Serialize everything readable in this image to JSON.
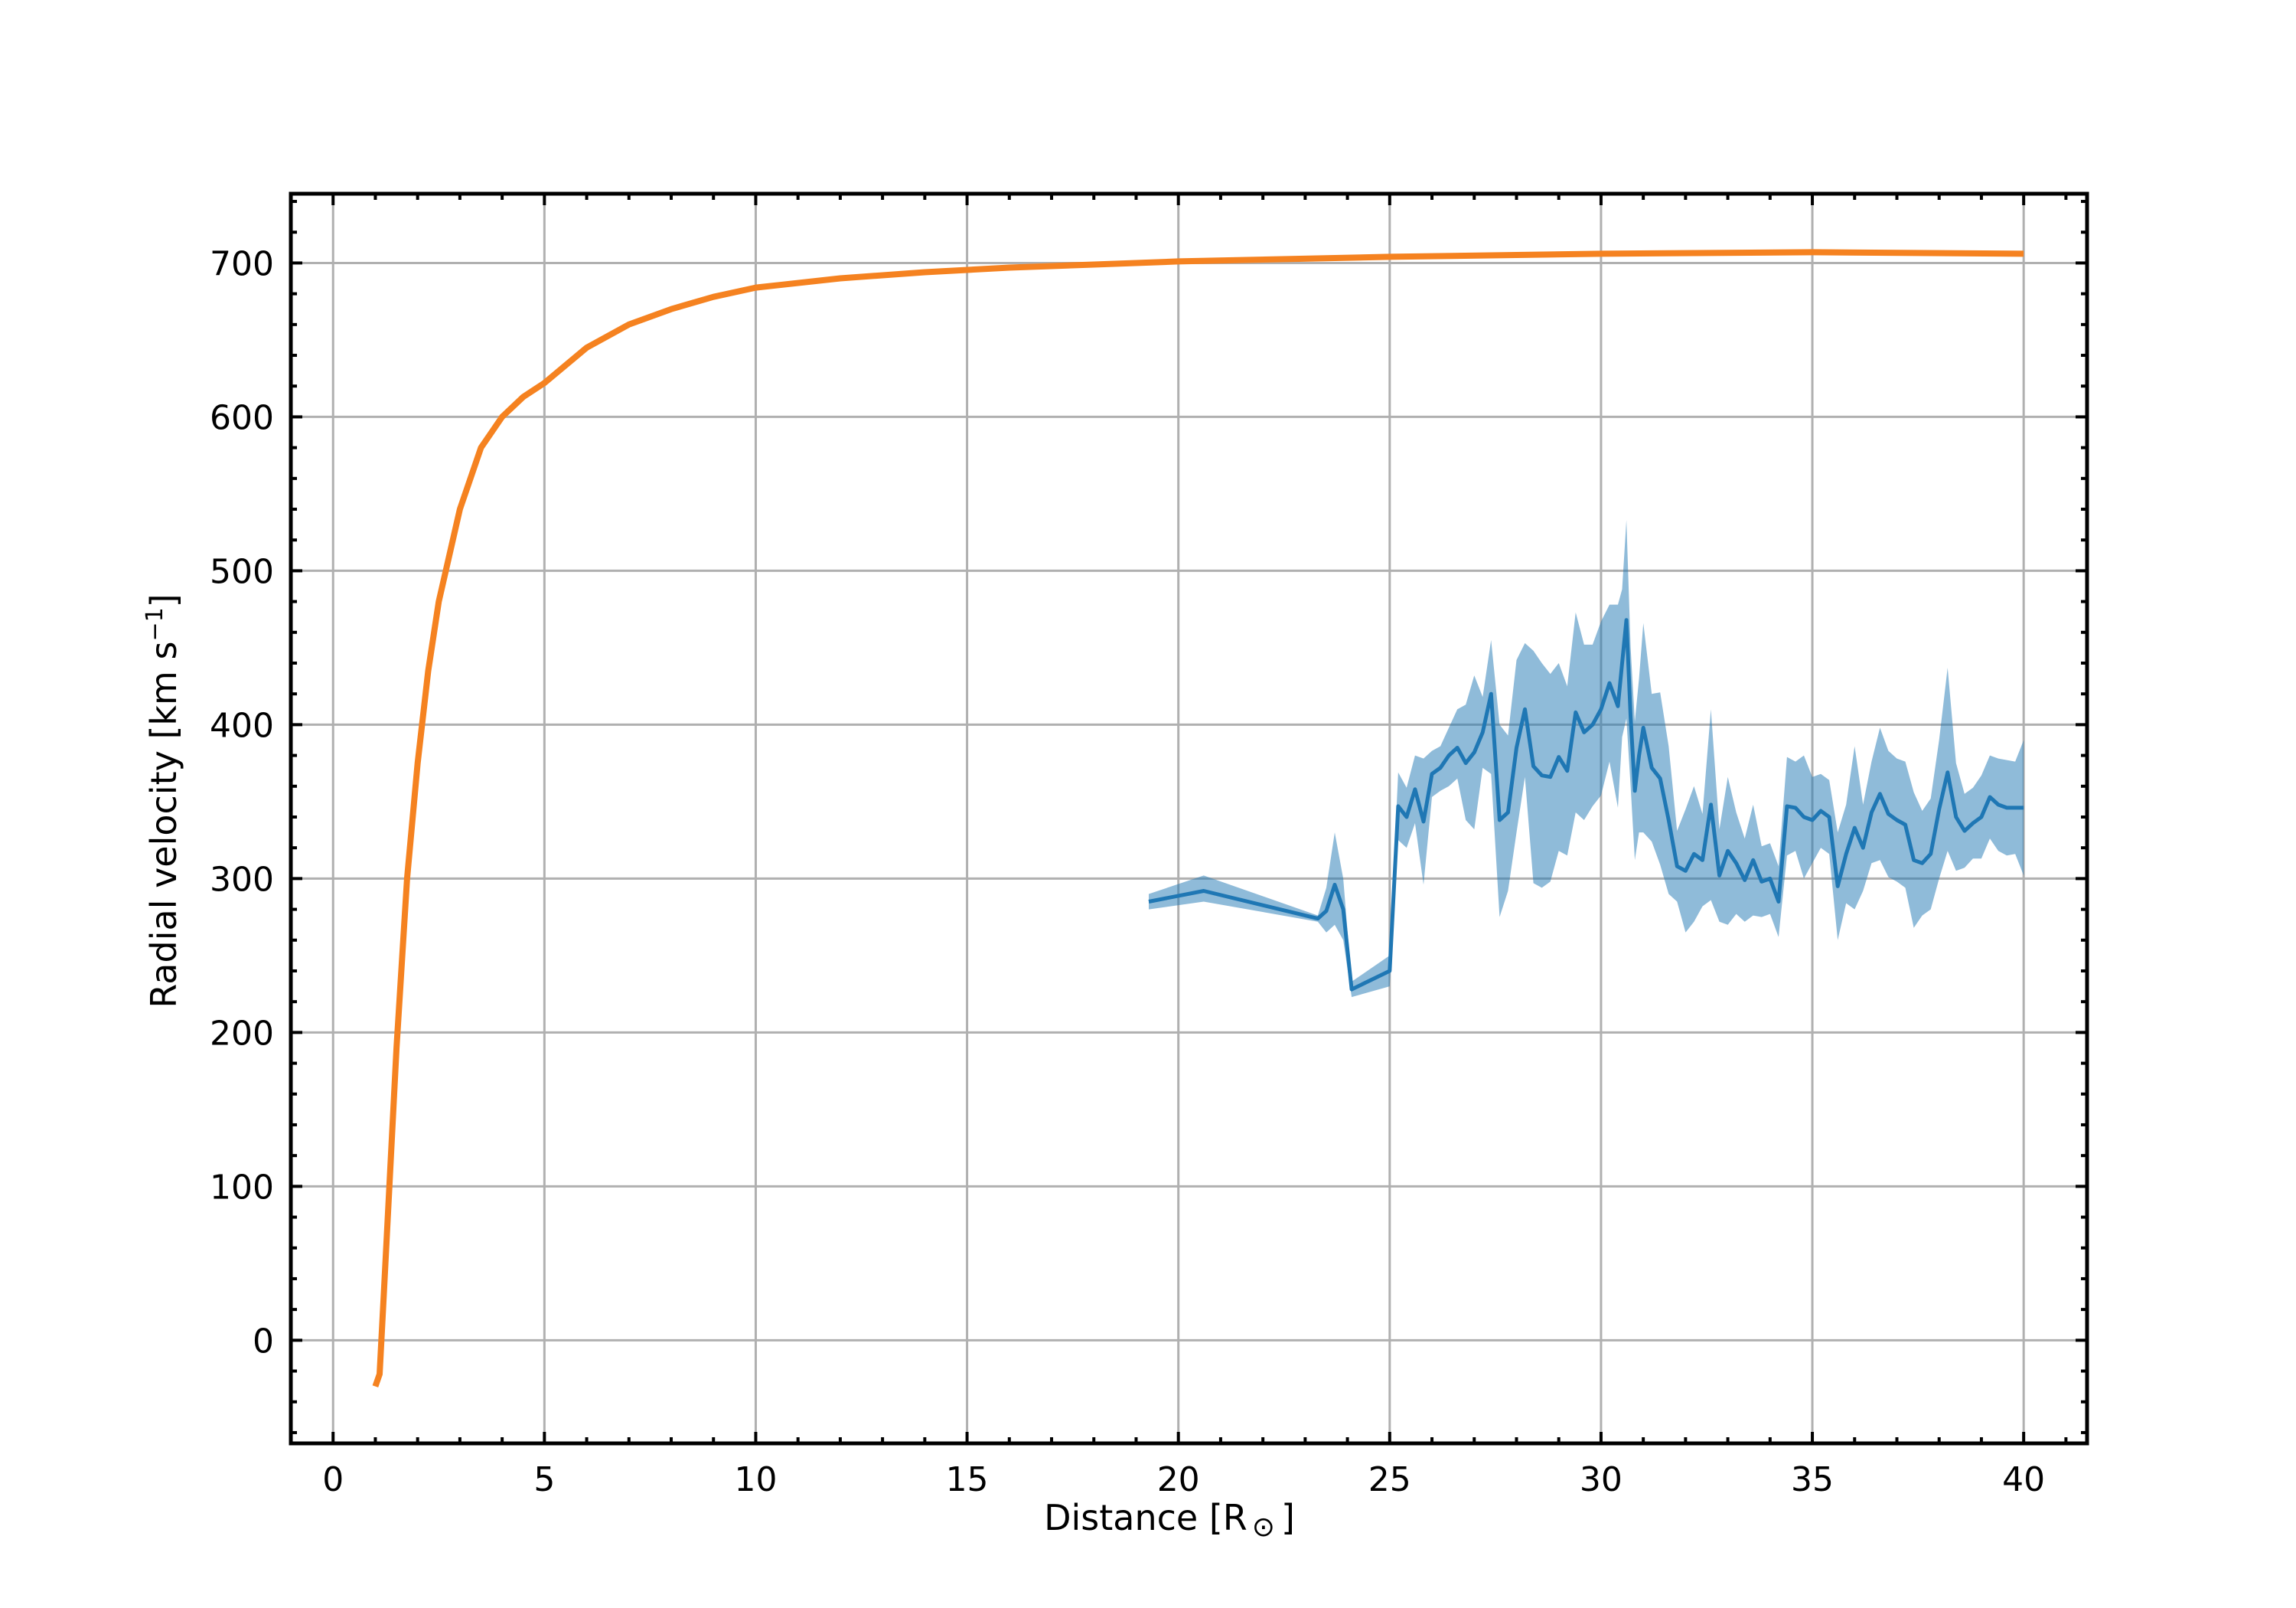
{
  "chart_data": {
    "type": "line",
    "xlabel": {
      "main": "Distance [R",
      "sub": "⊙",
      "close": "]"
    },
    "ylabel": {
      "main": "Radial velocity [km s",
      "sup": "−1",
      "close": "]"
    },
    "xlim": [
      -1,
      41.5
    ],
    "ylim": [
      -67,
      745
    ],
    "xticks": [
      0,
      5,
      10,
      15,
      20,
      25,
      30,
      35,
      40
    ],
    "yticks": [
      0,
      100,
      200,
      300,
      400,
      500,
      600,
      700
    ],
    "xtick_labels": [
      "0",
      "5",
      "10",
      "15",
      "20",
      "25",
      "30",
      "35",
      "40"
    ],
    "ytick_labels": [
      "0",
      "100",
      "200",
      "300",
      "400",
      "500",
      "600",
      "700"
    ],
    "grid": true,
    "colors": {
      "model": "#f58220",
      "observed": "#1f77b4",
      "band": "#1f77b4",
      "grid": "#b0b0b0",
      "axes": "#000000"
    },
    "series": [
      {
        "style": "line",
        "color": "#f58220",
        "x": [
          1.0,
          1.1,
          1.2,
          1.35,
          1.5,
          1.75,
          2.0,
          2.25,
          2.5,
          3.0,
          3.5,
          4.0,
          4.5,
          5.0,
          6.0,
          7.0,
          8.0,
          9.0,
          10.0,
          12.0,
          14.0,
          16.0,
          18.0,
          20.0,
          25.0,
          30.0,
          35.0,
          40.0
        ],
        "y": [
          -30,
          -22,
          30,
          110,
          190,
          300,
          375,
          435,
          480,
          540,
          580,
          600,
          613,
          622,
          645,
          660,
          670,
          678,
          684,
          690,
          694,
          697,
          699,
          701,
          704,
          706,
          707,
          706
        ]
      },
      {
        "style": "line_with_band",
        "color": "#1f77b4",
        "x": [
          19.3,
          20.6,
          23.3,
          23.5,
          23.7,
          23.9,
          24.1,
          25.0,
          25.2,
          25.4,
          25.6,
          25.8,
          26.0,
          26.2,
          26.4,
          26.6,
          26.8,
          27.0,
          27.2,
          27.4,
          27.6,
          27.8,
          28.0,
          28.2,
          28.4,
          28.6,
          28.8,
          29.0,
          29.2,
          29.4,
          29.6,
          29.8,
          30.0,
          30.2,
          30.4,
          30.5,
          30.6,
          30.7,
          30.8,
          30.9,
          31.0,
          31.2,
          31.4,
          31.6,
          31.8,
          32.0,
          32.2,
          32.4,
          32.6,
          32.8,
          33.0,
          33.2,
          33.4,
          33.6,
          33.8,
          34.0,
          34.2,
          34.4,
          34.6,
          34.8,
          35.0,
          35.2,
          35.4,
          35.6,
          35.8,
          36.0,
          36.2,
          36.4,
          36.6,
          36.8,
          37.0,
          37.2,
          37.4,
          37.6,
          37.8,
          38.0,
          38.2,
          38.4,
          38.6,
          38.8,
          39.0,
          39.2,
          39.4,
          39.6,
          39.8,
          40.0
        ],
        "y": [
          285,
          292,
          274,
          279,
          296,
          280,
          228,
          240,
          347,
          340,
          358,
          337,
          368,
          372,
          380,
          385,
          375,
          382,
          395,
          420,
          338,
          343,
          385,
          410,
          373,
          367,
          366,
          379,
          370,
          408,
          395,
          400,
          410,
          427,
          412,
          440,
          468,
          405,
          357,
          380,
          398,
          372,
          365,
          338,
          308,
          305,
          316,
          312,
          348,
          302,
          318,
          310,
          299,
          312,
          298,
          300,
          285,
          347,
          346,
          340,
          338,
          344,
          340,
          295,
          316,
          333,
          320,
          343,
          355,
          342,
          338,
          335,
          312,
          310,
          316,
          345,
          369,
          340,
          331,
          336,
          340,
          353,
          348,
          346,
          346,
          346
        ],
        "y_lower": [
          280,
          285,
          272,
          265,
          270,
          260,
          223,
          230,
          325,
          320,
          336,
          296,
          353,
          357,
          360,
          365,
          338,
          332,
          372,
          368,
          275,
          292,
          330,
          366,
          297,
          294,
          298,
          318,
          315,
          343,
          338,
          347,
          354,
          376,
          346,
          392,
          404,
          360,
          312,
          330,
          330,
          324,
          309,
          290,
          285,
          265,
          272,
          282,
          286,
          272,
          270,
          277,
          272,
          276,
          275,
          277,
          262,
          315,
          318,
          300,
          310,
          320,
          316,
          260,
          284,
          280,
          292,
          310,
          312,
          301,
          298,
          294,
          268,
          276,
          280,
          300,
          318,
          305,
          307,
          313,
          313,
          326,
          318,
          315,
          316,
          302
        ],
        "y_upper": [
          290,
          302,
          276,
          294,
          330,
          300,
          233,
          250,
          369,
          359,
          380,
          378,
          383,
          386,
          398,
          410,
          413,
          432,
          418,
          455,
          400,
          393,
          442,
          453,
          448,
          440,
          433,
          440,
          425,
          473,
          452,
          452,
          467,
          478,
          478,
          488,
          533,
          450,
          402,
          430,
          466,
          420,
          421,
          386,
          331,
          345,
          360,
          342,
          410,
          332,
          366,
          343,
          326,
          348,
          321,
          323,
          308,
          379,
          376,
          380,
          366,
          368,
          364,
          330,
          348,
          386,
          348,
          376,
          398,
          383,
          378,
          376,
          356,
          344,
          352,
          390,
          437,
          375,
          355,
          359,
          367,
          380,
          378,
          377,
          376,
          390
        ]
      }
    ]
  }
}
